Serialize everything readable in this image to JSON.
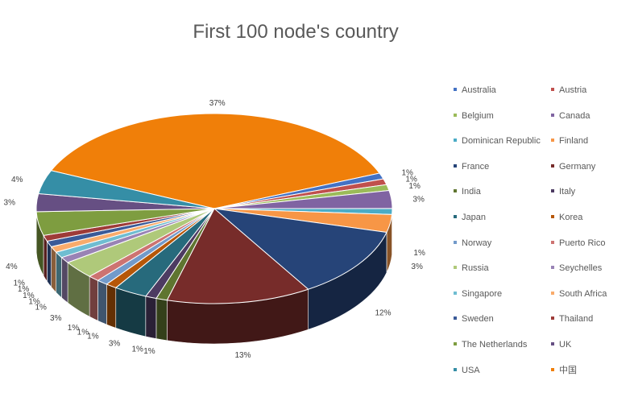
{
  "chart_data": {
    "type": "pie",
    "title": "First 100 node's country",
    "categories": [
      "Australia",
      "Austria",
      "Belgium",
      "Canada",
      "Dominican Republic",
      "Finland",
      "France",
      "Germany",
      "India",
      "Italy",
      "Japan",
      "Korea",
      "Norway",
      "Puerto Rico",
      "Russia",
      "Seychelles",
      "Singapore",
      "South Africa",
      "Sweden",
      "Thailand",
      "The Netherlands",
      "UK",
      "USA",
      "中国"
    ],
    "values": [
      1,
      1,
      1,
      3,
      1,
      3,
      12,
      13,
      1,
      1,
      3,
      1,
      1,
      1,
      3,
      1,
      1,
      1,
      1,
      1,
      4,
      3,
      4,
      37
    ],
    "value_labels": [
      "1%",
      "1%",
      "1%",
      "3%",
      "1%",
      "3%",
      "12%",
      "13%",
      "1%",
      "1%",
      "3%",
      "1%",
      "1%",
      "1%",
      "3%",
      "1%",
      "1%",
      "1%",
      "1%",
      "1%",
      "4%",
      "3%",
      "4%",
      "37%"
    ],
    "colors": [
      "#4472C4",
      "#C0504D",
      "#9BBB59",
      "#8064A2",
      "#4BACC6",
      "#F79646",
      "#264478",
      "#772C2A",
      "#5F7530",
      "#4D3B62",
      "#276A7C",
      "#B65708",
      "#729ACA",
      "#CD7371",
      "#AFC97A",
      "#9983B5",
      "#6FBDD1",
      "#F9AB6B",
      "#3A5A98",
      "#9E3B38",
      "#7E9D40",
      "#664F83",
      "#358EA6",
      "#F07F09"
    ],
    "legend_position": "right",
    "start_angle_deg": 0,
    "labels_positions": "outside"
  }
}
